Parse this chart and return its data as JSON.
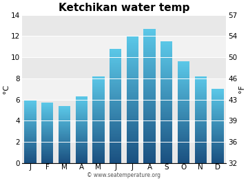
{
  "title": "Ketchikan water temp",
  "months": [
    "J",
    "F",
    "M",
    "A",
    "M",
    "J",
    "J",
    "A",
    "S",
    "O",
    "N",
    "D"
  ],
  "values_c": [
    5.9,
    5.7,
    5.4,
    6.3,
    8.2,
    10.8,
    12.0,
    12.7,
    11.5,
    9.6,
    8.2,
    7.0
  ],
  "ylabel_left": "°C",
  "ylabel_right": "°F",
  "yticks_left": [
    0,
    2,
    4,
    6,
    8,
    10,
    12,
    14
  ],
  "yticks_right": [
    32,
    36,
    39,
    43,
    46,
    50,
    54,
    57
  ],
  "ylim": [
    0,
    14
  ],
  "bar_color_top": "#5bc8e8",
  "bar_color_bottom": "#1a5080",
  "fig_bg_color": "#ffffff",
  "plot_bg_color_light": "#f0f0f0",
  "plot_bg_color_dark": "#e0e0e0",
  "watermark": "© www.seatemperature.org",
  "title_fontsize": 11,
  "axis_fontsize": 8,
  "tick_fontsize": 7.5
}
